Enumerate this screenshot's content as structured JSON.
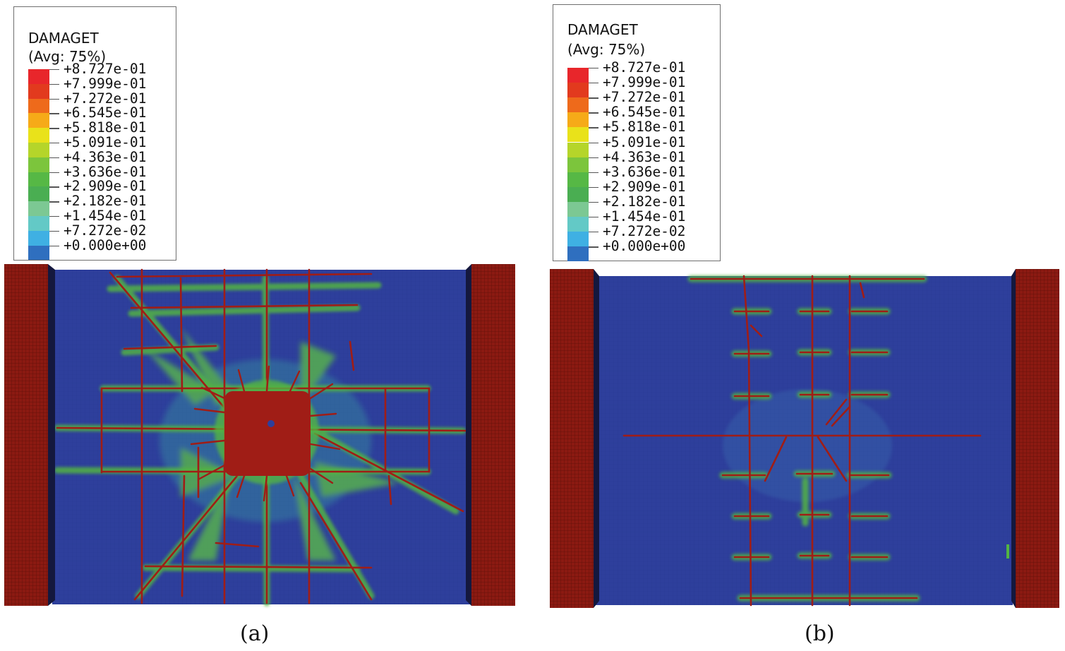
{
  "figures": [
    {
      "id": "a",
      "caption": "(a)",
      "legend": {
        "title": "DAMAGET",
        "subtitle": "(Avg: 75%)",
        "values": [
          "+8.727e-01",
          "+7.999e-01",
          "+7.272e-01",
          "+6.545e-01",
          "+5.818e-01",
          "+5.091e-01",
          "+4.363e-01",
          "+3.636e-01",
          "+2.909e-01",
          "+2.182e-01",
          "+1.454e-01",
          "+7.272e-02",
          "+0.000e+00"
        ]
      }
    },
    {
      "id": "b",
      "caption": "(b)",
      "legend": {
        "title": "DAMAGET",
        "subtitle": "(Avg: 75%)",
        "values": [
          "+8.727e-01",
          "+7.999e-01",
          "+7.272e-01",
          "+6.545e-01",
          "+5.818e-01",
          "+5.091e-01",
          "+4.363e-01",
          "+3.636e-01",
          "+2.909e-01",
          "+2.182e-01",
          "+1.454e-01",
          "+7.272e-02",
          "+0.000e+00"
        ]
      }
    }
  ],
  "colors": {
    "scale": [
      "#e8262b",
      "#e23a1e",
      "#ee6a1b",
      "#f6aa18",
      "#e9e21a",
      "#b5d52a",
      "#7cc53c",
      "#56b845",
      "#4aae52",
      "#7cc893",
      "#63c9c6",
      "#3fb0e3",
      "#2f6fbf",
      "#2a4aa6"
    ],
    "panel_blue": "#2e3f9c",
    "damage_red": "#a01d16",
    "support_red": "#8b1a12",
    "crack_green": "#52b442"
  }
}
